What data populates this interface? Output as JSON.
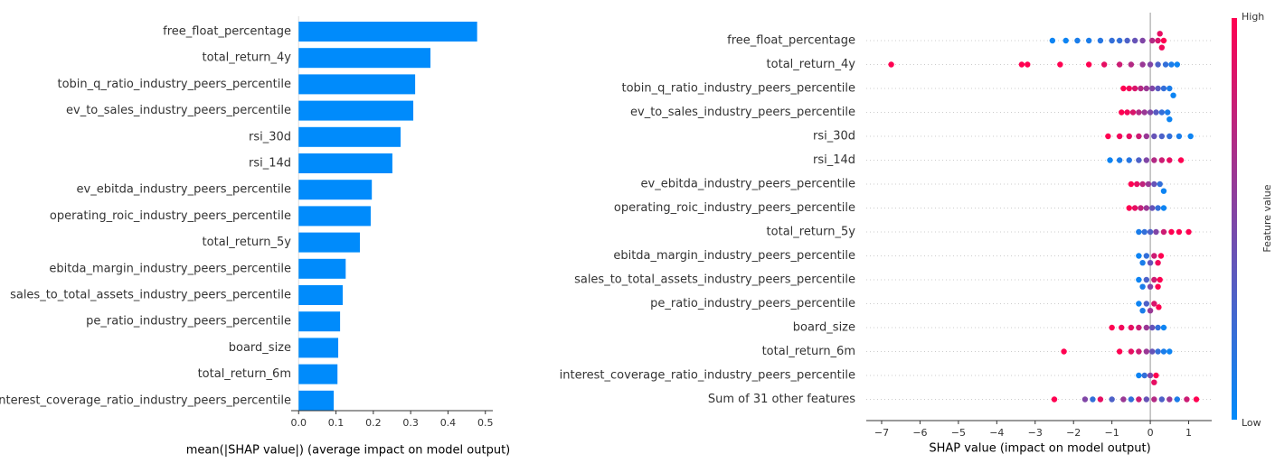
{
  "chart_data": [
    {
      "type": "bar",
      "categories": [
        "free_float_percentage",
        "total_return_4y",
        "tobin_q_ratio_industry_peers_percentile",
        "ev_to_sales_industry_peers_percentile",
        "rsi_30d",
        "rsi_14d",
        "ev_ebitda_industry_peers_percentile",
        "operating_roic_industry_peers_percentile",
        "total_return_5y",
        "ebitda_margin_industry_peers_percentile",
        "sales_to_total_assets_industry_peers_percentile",
        "pe_ratio_industry_peers_percentile",
        "board_size",
        "total_return_6m",
        "interest_coverage_ratio_industry_peers_percentile"
      ],
      "values": [
        0.478,
        0.353,
        0.312,
        0.307,
        0.273,
        0.251,
        0.196,
        0.193,
        0.164,
        0.126,
        0.118,
        0.111,
        0.106,
        0.104,
        0.094
      ],
      "color": "#008bfb",
      "x_label": "mean(|SHAP value|) (average impact on model output)",
      "xlim": [
        -0.02,
        0.52
      ],
      "xticks": [
        {
          "value": 0,
          "label": "0.0"
        },
        0.1,
        0.2,
        0.3,
        0.4,
        0.5
      ]
    },
    {
      "type": "beeswarm",
      "categories": [
        "free_float_percentage",
        "total_return_4y",
        "tobin_q_ratio_industry_peers_percentile",
        "ev_to_sales_industry_peers_percentile",
        "rsi_30d",
        "rsi_14d",
        "ev_ebitda_industry_peers_percentile",
        "operating_roic_industry_peers_percentile",
        "total_return_5y",
        "ebitda_margin_industry_peers_percentile",
        "sales_to_total_assets_industry_peers_percentile",
        "pe_ratio_industry_peers_percentile",
        "board_size",
        "total_return_6m",
        "interest_coverage_ratio_industry_peers_percentile",
        "Sum of 31 other features"
      ],
      "points": [
        {
          "values": [
            -2.55,
            -2.2,
            -1.9,
            -1.6,
            -1.3,
            -1.0,
            -0.8,
            -0.6,
            -0.4,
            -0.2,
            0.05,
            0.2,
            0.3,
            0.35,
            0.25
          ],
          "feature_values": [
            0.05,
            0.05,
            0.1,
            0.1,
            0.15,
            0.2,
            0.2,
            0.3,
            0.4,
            0.5,
            0.7,
            0.85,
            0.95,
            1,
            0.9
          ]
        },
        {
          "values": [
            -6.75,
            -3.35,
            -3.2,
            -2.35,
            -1.6,
            -1.2,
            -0.8,
            -0.5,
            -0.2,
            0,
            0.2,
            0.4,
            0.55,
            0.7
          ],
          "feature_values": [
            1,
            1,
            1,
            1,
            1,
            0.9,
            0.8,
            0.7,
            0.6,
            0.5,
            0.3,
            0.2,
            0.1,
            0.05
          ]
        },
        {
          "values": [
            -0.7,
            -0.55,
            -0.4,
            -0.25,
            -0.1,
            0.05,
            0.2,
            0.35,
            0.5,
            0.6
          ],
          "feature_values": [
            1,
            0.95,
            0.85,
            0.7,
            0.6,
            0.5,
            0.35,
            0.2,
            0.1,
            0.05
          ]
        },
        {
          "values": [
            -0.75,
            -0.6,
            -0.45,
            -0.3,
            -0.15,
            0,
            0.15,
            0.3,
            0.45,
            0.5
          ],
          "feature_values": [
            1,
            0.95,
            0.85,
            0.7,
            0.6,
            0.5,
            0.35,
            0.2,
            0.1,
            0.05
          ]
        },
        {
          "values": [
            -1.1,
            -0.8,
            -0.55,
            -0.3,
            -0.1,
            0.1,
            0.3,
            0.5,
            0.75,
            1.05
          ],
          "feature_values": [
            1,
            0.95,
            0.9,
            0.8,
            0.6,
            0.4,
            0.3,
            0.2,
            0.1,
            0.05
          ]
        },
        {
          "values": [
            -1.05,
            -0.8,
            -0.55,
            -0.3,
            -0.1,
            0.1,
            0.3,
            0.5,
            0.8
          ],
          "feature_values": [
            0.05,
            0.1,
            0.15,
            0.3,
            0.5,
            0.7,
            0.8,
            0.9,
            1
          ]
        },
        {
          "values": [
            -0.5,
            -0.35,
            -0.2,
            -0.05,
            0.1,
            0.25,
            0.35
          ],
          "feature_values": [
            1,
            0.9,
            0.75,
            0.6,
            0.4,
            0.2,
            0.05
          ]
        },
        {
          "values": [
            -0.55,
            -0.4,
            -0.25,
            -0.1,
            0.05,
            0.2,
            0.35
          ],
          "feature_values": [
            1,
            0.9,
            0.75,
            0.6,
            0.4,
            0.2,
            0.05
          ]
        },
        {
          "values": [
            -0.3,
            -0.15,
            0,
            0.15,
            0.35,
            0.55,
            0.75,
            1.0
          ],
          "feature_values": [
            0.1,
            0.2,
            0.3,
            0.5,
            0.8,
            1,
            1,
            1
          ]
        },
        {
          "values": [
            -0.3,
            -0.2,
            -0.1,
            0,
            0.1,
            0.2,
            0.28
          ],
          "feature_values": [
            0.05,
            0.1,
            0.2,
            0.4,
            0.8,
            0.95,
            1
          ]
        },
        {
          "values": [
            -0.3,
            -0.2,
            -0.1,
            0,
            0.1,
            0.2,
            0.25
          ],
          "feature_values": [
            0.05,
            0.1,
            0.3,
            0.5,
            0.8,
            1,
            1
          ]
        },
        {
          "values": [
            -0.3,
            -0.2,
            -0.1,
            0,
            0.1,
            0.22
          ],
          "feature_values": [
            0.05,
            0.1,
            0.3,
            0.6,
            0.85,
            1
          ]
        },
        {
          "values": [
            -1.0,
            -0.75,
            -0.5,
            -0.3,
            -0.1,
            0.05,
            0.2,
            0.35
          ],
          "feature_values": [
            1,
            0.95,
            0.9,
            0.8,
            0.6,
            0.4,
            0.2,
            0.05
          ]
        },
        {
          "values": [
            -2.25,
            -0.8,
            -0.5,
            -0.3,
            -0.1,
            0.05,
            0.2,
            0.35,
            0.5
          ],
          "feature_values": [
            1,
            1,
            0.9,
            0.8,
            0.6,
            0.4,
            0.2,
            0.1,
            0.05
          ]
        },
        {
          "values": [
            -0.3,
            -0.15,
            0,
            0.1,
            0.15
          ],
          "feature_values": [
            0.05,
            0.2,
            0.5,
            0.9,
            1
          ]
        },
        {
          "values": [
            -2.5,
            -1.7,
            -1.5,
            -1.3,
            -1.0,
            -0.7,
            -0.5,
            -0.3,
            -0.1,
            0.1,
            0.3,
            0.5,
            0.7,
            0.95,
            1.2
          ],
          "feature_values": [
            1,
            0.5,
            0.2,
            0.9,
            0.3,
            0.6,
            0.2,
            0.8,
            0.4,
            0.7,
            0.3,
            0.6,
            0.1,
            0.8,
            1
          ]
        }
      ],
      "x_label": "SHAP value (impact on model output)",
      "xlim": [
        -7.4,
        1.6
      ],
      "xticks": [
        {
          "value": -7,
          "label": "−7"
        },
        {
          "value": -6,
          "label": "−6"
        },
        {
          "value": -5,
          "label": "−5"
        },
        {
          "value": -4,
          "label": "−4"
        },
        {
          "value": -3,
          "label": "−3"
        },
        {
          "value": -2,
          "label": "−2"
        },
        {
          "value": -1,
          "label": "−1"
        },
        0,
        1
      ],
      "colorbar": {
        "label": "Feature value",
        "high": "High",
        "low": "Low",
        "colors": [
          "#008bfb",
          "#ff0051"
        ]
      }
    }
  ]
}
